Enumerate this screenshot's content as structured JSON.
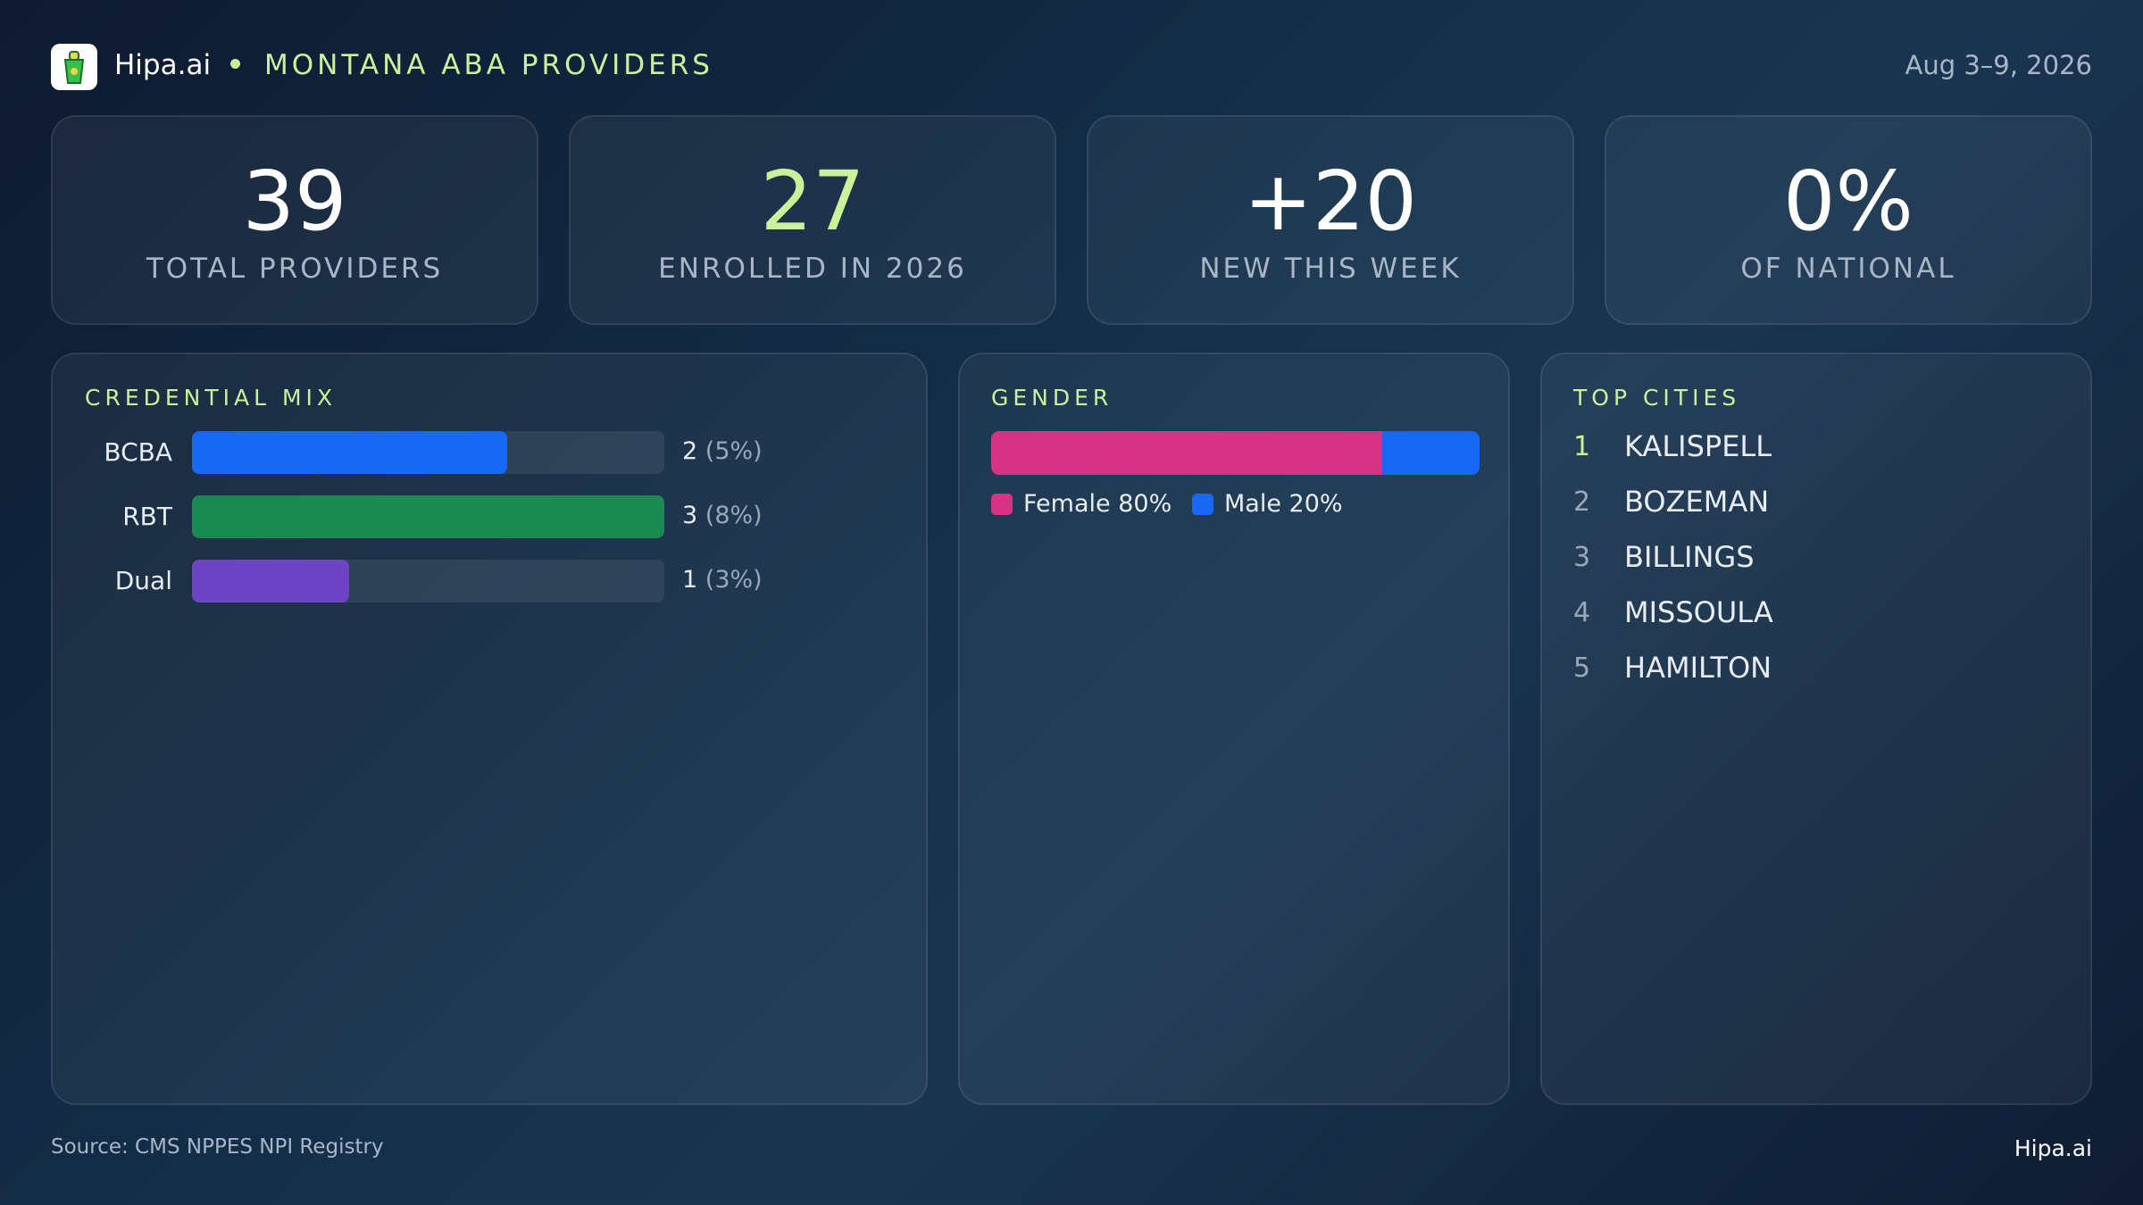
{
  "header": {
    "brand": "Hipa.ai",
    "title": "MONTANA ABA PROVIDERS",
    "date": "Aug 3–9, 2026"
  },
  "kpis": [
    {
      "value": "39",
      "label": "TOTAL PROVIDERS"
    },
    {
      "value": "27",
      "label": "ENROLLED IN 2026"
    },
    {
      "value": "+20",
      "label": "NEW THIS WEEK"
    },
    {
      "value": "0%",
      "label": "OF NATIONAL"
    }
  ],
  "credential_mix": {
    "title": "CREDENTIAL MIX",
    "items": [
      {
        "label": "BCBA",
        "value": 2,
        "share_label": "(5%)",
        "color": "#1769f5"
      },
      {
        "label": "RBT",
        "value": 3,
        "share_label": "(8%)",
        "color": "#1b8a52"
      },
      {
        "label": "Dual",
        "value": 1,
        "share_label": "(3%)",
        "color": "#6d45c4"
      }
    ]
  },
  "gender": {
    "title": "GENDER",
    "segments": [
      {
        "share": 80,
        "label": "Female 80%",
        "color": "#d63384"
      },
      {
        "share": 20,
        "label": "Male 20%",
        "color": "#1769f5"
      }
    ]
  },
  "top_cities": {
    "title": "TOP CITIES",
    "rows": [
      {
        "rank": 1,
        "city": "KALISPELL"
      },
      {
        "rank": 2,
        "city": "BOZEMAN"
      },
      {
        "rank": 3,
        "city": "BILLINGS"
      },
      {
        "rank": 4,
        "city": "MISSOULA"
      },
      {
        "rank": 5,
        "city": "HAMILTON"
      }
    ]
  },
  "footer": {
    "source": "Source: CMS NPPES NPI Registry",
    "brand": "Hipa.ai"
  }
}
